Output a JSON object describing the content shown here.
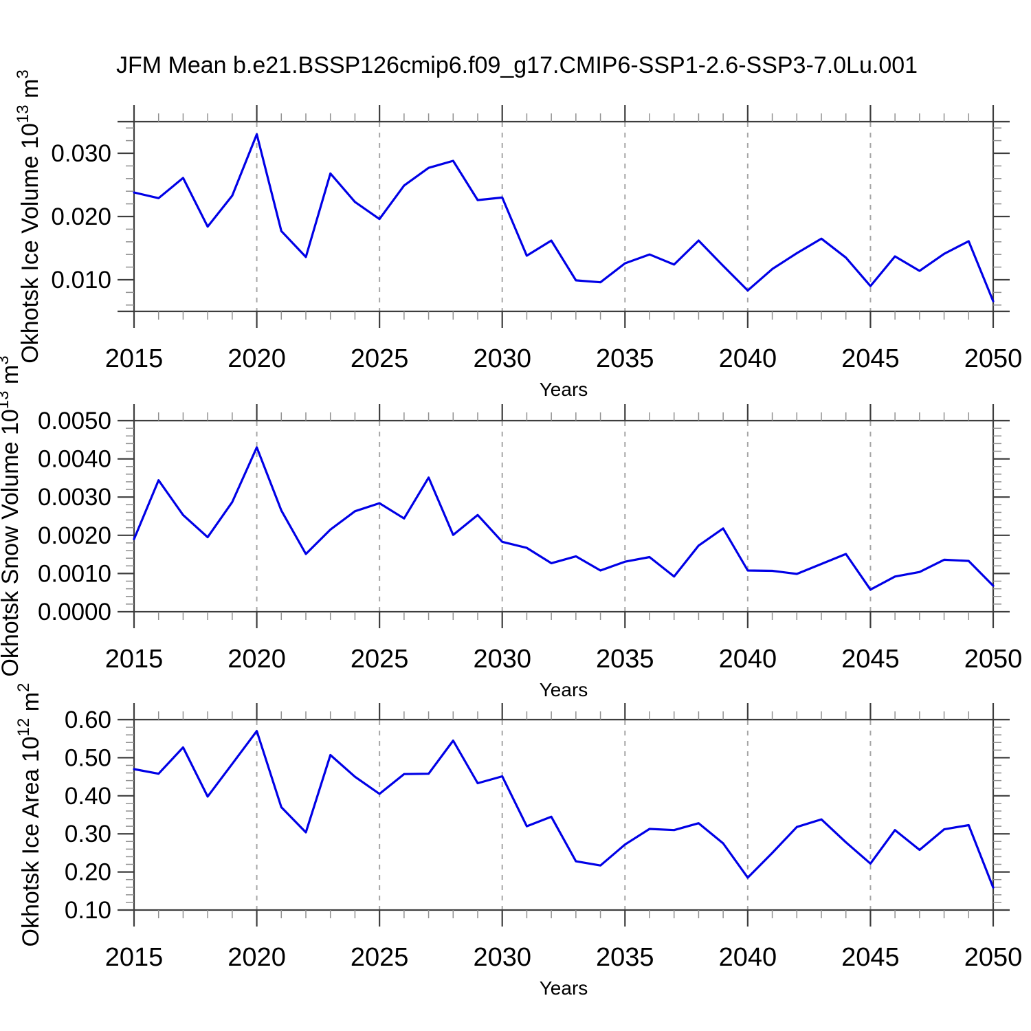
{
  "title": "JFM Mean b.e21.BSSP126cmip6.f09_g17.CMIP6-SSP1-2.6-SSP3-7.0Lu.001",
  "xlabel": "Years",
  "x_labeled_ticks": [
    2015,
    2020,
    2025,
    2030,
    2035,
    2040,
    2045,
    2050
  ],
  "grid_years": [
    2020,
    2025,
    2030,
    2035,
    2040,
    2045
  ],
  "colors": {
    "line": "#0000e6",
    "grid": "#a6a6a6",
    "axis": "#3d3d3d",
    "minor_tick": "#8f8f8f",
    "text": "#000000",
    "background": "#ffffff"
  },
  "chart_data": [
    {
      "type": "line",
      "name": "okhotsk-ice-volume",
      "ylabel": "Okhotsk Ice Volume 10^13 m^3",
      "ylabel_parts": [
        {
          "t": "Okhotsk Ice Volume 10"
        },
        {
          "t": "13",
          "sup": true
        },
        {
          "t": " m"
        },
        {
          "t": "3",
          "sup": true
        }
      ],
      "xlabel": "Years",
      "ylim": [
        0.005,
        0.035
      ],
      "y_minor_step": 0.002,
      "yticks": [
        {
          "v": 0.01,
          "label": "0.010"
        },
        {
          "v": 0.02,
          "label": "0.020"
        },
        {
          "v": 0.03,
          "label": "0.030"
        }
      ],
      "x": [
        2015,
        2016,
        2017,
        2018,
        2019,
        2020,
        2021,
        2022,
        2023,
        2024,
        2025,
        2026,
        2027,
        2028,
        2029,
        2030,
        2031,
        2032,
        2033,
        2034,
        2035,
        2036,
        2037,
        2038,
        2039,
        2040,
        2041,
        2042,
        2043,
        2044,
        2045,
        2046,
        2047,
        2048,
        2049,
        2050
      ],
      "values": [
        0.0238,
        0.0229,
        0.0261,
        0.0184,
        0.0233,
        0.033,
        0.0177,
        0.0136,
        0.0268,
        0.0223,
        0.0196,
        0.0249,
        0.0277,
        0.0288,
        0.0226,
        0.023,
        0.0138,
        0.0162,
        0.0099,
        0.0096,
        0.0126,
        0.014,
        0.0124,
        0.0162,
        0.0122,
        0.0083,
        0.0117,
        0.0142,
        0.0165,
        0.0135,
        0.009,
        0.0137,
        0.0114,
        0.0141,
        0.0161,
        0.0066
      ]
    },
    {
      "type": "line",
      "name": "okhotsk-snow-volume",
      "ylabel": "Okhotsk Snow Volume 10^13 m^3",
      "ylabel_parts": [
        {
          "t": "Okhotsk Snow Volume 10"
        },
        {
          "t": "13",
          "sup": true
        },
        {
          "t": " m"
        },
        {
          "t": "3",
          "sup": true
        }
      ],
      "xlabel": "Years",
      "ylim": [
        0.0,
        0.005
      ],
      "y_minor_step": 0.0002,
      "yticks": [
        {
          "v": 0.0,
          "label": "0.0000"
        },
        {
          "v": 0.001,
          "label": "0.0010"
        },
        {
          "v": 0.002,
          "label": "0.0020"
        },
        {
          "v": 0.003,
          "label": "0.0030"
        },
        {
          "v": 0.004,
          "label": "0.0040"
        },
        {
          "v": 0.005,
          "label": "0.0050"
        }
      ],
      "x": [
        2015,
        2016,
        2017,
        2018,
        2019,
        2020,
        2021,
        2022,
        2023,
        2024,
        2025,
        2026,
        2027,
        2028,
        2029,
        2030,
        2031,
        2032,
        2033,
        2034,
        2035,
        2036,
        2037,
        2038,
        2039,
        2040,
        2041,
        2042,
        2043,
        2044,
        2045,
        2046,
        2047,
        2048,
        2049,
        2050
      ],
      "values": [
        0.0019,
        0.00344,
        0.00253,
        0.00195,
        0.00287,
        0.0043,
        0.00265,
        0.00151,
        0.00215,
        0.00263,
        0.00284,
        0.00244,
        0.00351,
        0.00201,
        0.00253,
        0.00183,
        0.00167,
        0.00127,
        0.00145,
        0.00108,
        0.00131,
        0.00143,
        0.00092,
        0.00173,
        0.00218,
        0.00108,
        0.00107,
        0.00099,
        0.00125,
        0.00151,
        0.00058,
        0.00092,
        0.00104,
        0.00136,
        0.00133,
        0.00068
      ]
    },
    {
      "type": "line",
      "name": "okhotsk-ice-area",
      "ylabel": "Okhotsk Ice Area 10^12 m^2",
      "ylabel_parts": [
        {
          "t": "Okhotsk Ice Area 10"
        },
        {
          "t": "12",
          "sup": true
        },
        {
          "t": " m"
        },
        {
          "t": "2",
          "sup": true
        }
      ],
      "xlabel": "Years",
      "ylim": [
        0.1,
        0.6
      ],
      "y_minor_step": 0.02,
      "yticks": [
        {
          "v": 0.1,
          "label": "0.10"
        },
        {
          "v": 0.2,
          "label": "0.20"
        },
        {
          "v": 0.3,
          "label": "0.30"
        },
        {
          "v": 0.4,
          "label": "0.40"
        },
        {
          "v": 0.5,
          "label": "0.50"
        },
        {
          "v": 0.6,
          "label": "0.60"
        }
      ],
      "x": [
        2015,
        2016,
        2017,
        2018,
        2019,
        2020,
        2021,
        2022,
        2023,
        2024,
        2025,
        2026,
        2027,
        2028,
        2029,
        2030,
        2031,
        2032,
        2033,
        2034,
        2035,
        2036,
        2037,
        2038,
        2039,
        2040,
        2041,
        2042,
        2043,
        2044,
        2045,
        2046,
        2047,
        2048,
        2049,
        2050
      ],
      "values": [
        0.47,
        0.458,
        0.527,
        0.398,
        0.484,
        0.57,
        0.37,
        0.304,
        0.507,
        0.45,
        0.405,
        0.457,
        0.458,
        0.545,
        0.433,
        0.451,
        0.32,
        0.345,
        0.228,
        0.217,
        0.272,
        0.313,
        0.31,
        0.328,
        0.275,
        0.185,
        0.25,
        0.318,
        0.338,
        0.278,
        0.222,
        0.31,
        0.258,
        0.312,
        0.323,
        0.159
      ]
    }
  ]
}
